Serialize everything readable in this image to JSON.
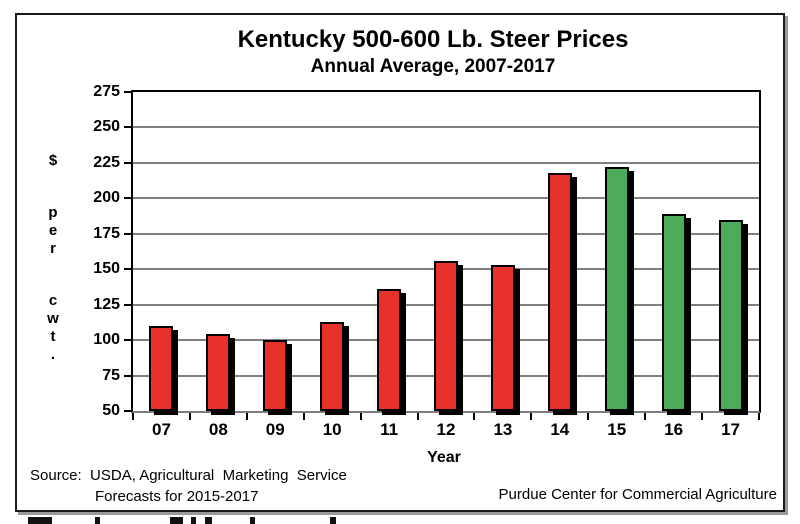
{
  "chart_data": {
    "type": "bar",
    "title": "Kentucky 500-600 Lb. Steer Prices",
    "subtitle": "Annual Average, 2007-2017",
    "xlabel": "Year",
    "ylabel": "$ per cwt.",
    "ylim": [
      50,
      275
    ],
    "ytick_step": 25,
    "yticks": [
      275,
      250,
      225,
      200,
      175,
      150,
      125,
      100,
      75,
      50
    ],
    "grid": true,
    "legend": false,
    "categories": [
      "07",
      "08",
      "09",
      "10",
      "11",
      "12",
      "13",
      "14",
      "15",
      "16",
      "17"
    ],
    "values": [
      110,
      104,
      100,
      113,
      136,
      156,
      153,
      218,
      222,
      189,
      185
    ],
    "bar_colors": [
      "#e8312a",
      "#e8312a",
      "#e8312a",
      "#e8312a",
      "#e8312a",
      "#e8312a",
      "#e8312a",
      "#e8312a",
      "#4dac5c",
      "#4dac5c",
      "#4dac5c"
    ],
    "color_legend": {
      "actual_2007_2014": "#e8312a",
      "forecast_2015_2017": "#4dac5c"
    }
  },
  "footer": {
    "source_line1": "Source:  USDA, Agricultural  Marketing  Service",
    "source_line2": "Forecasts for 2015-2017",
    "credit": "Purdue Center for Commercial Agriculture"
  }
}
